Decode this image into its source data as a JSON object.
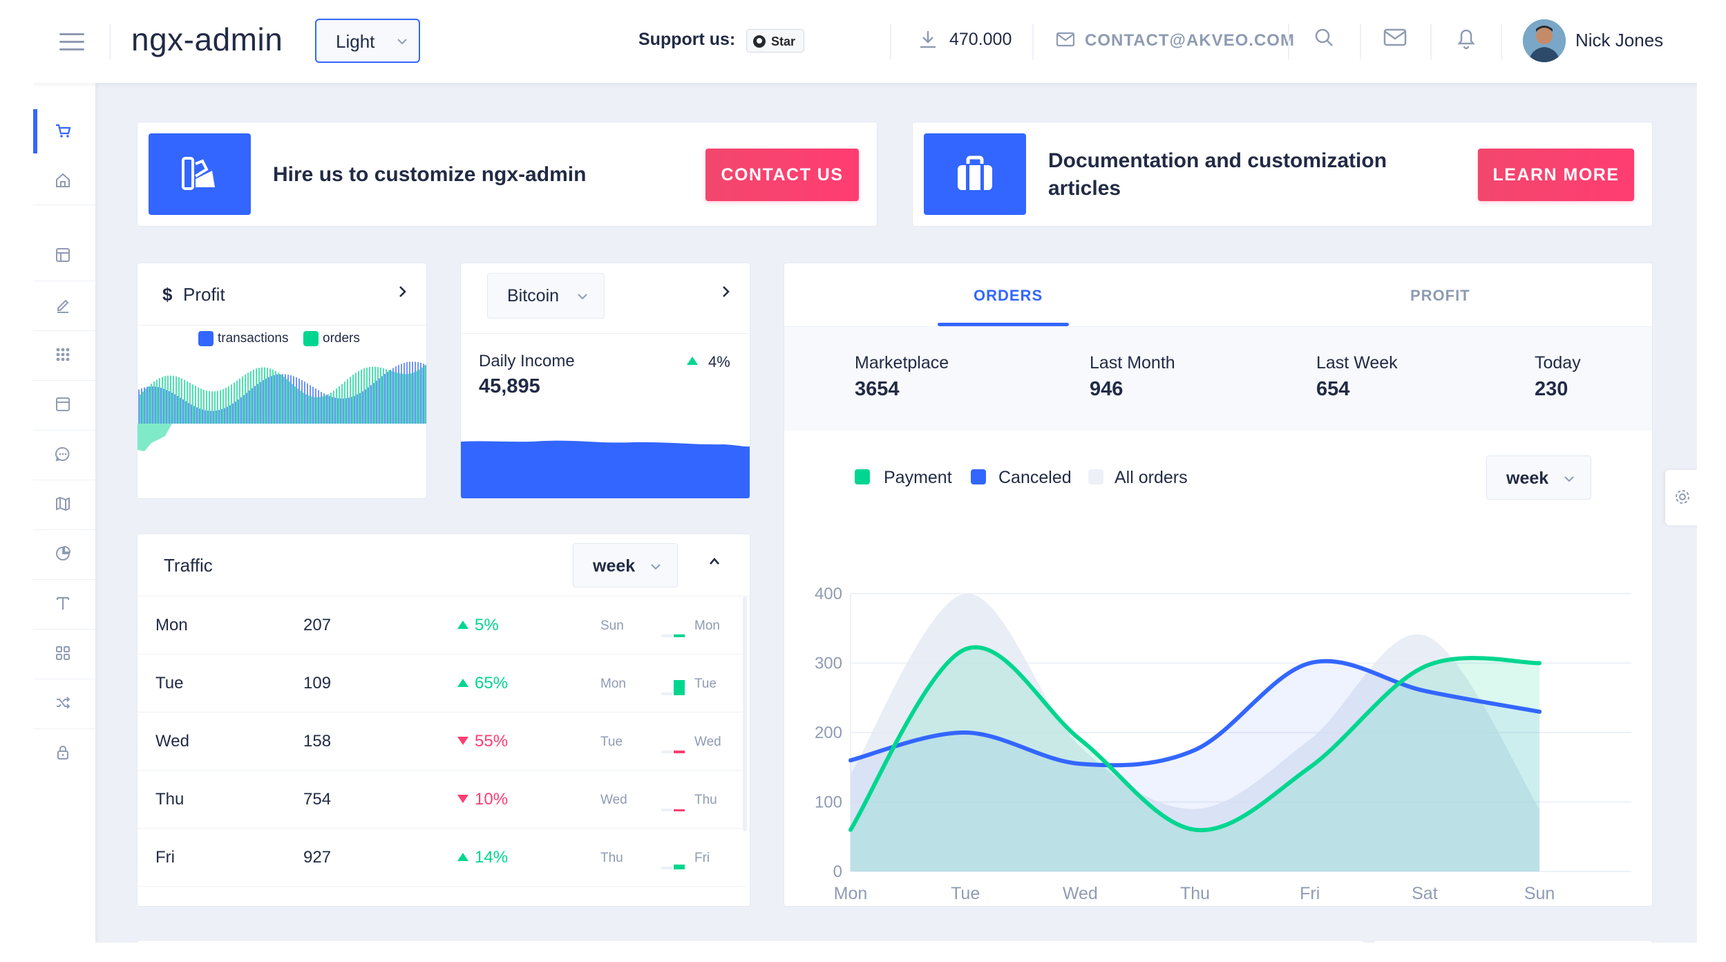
{
  "header": {
    "logo": "ngx-admin",
    "theme": "Light",
    "support_label": "Support us:",
    "star_label": "Star",
    "downloads": "470.000",
    "contact": "CONTACT@AKVEO.COM",
    "user_name": "Nick Jones"
  },
  "sidebar": {
    "items": [
      "shopping-cart-icon",
      "home-icon",
      "layout-icon",
      "edit-icon",
      "keypad-icon",
      "browser-icon",
      "message-circle-icon",
      "map-icon",
      "pie-chart-icon",
      "text-icon",
      "grid-icon",
      "shuffle-icon",
      "lock-icon"
    ]
  },
  "promo": {
    "hire_text": "Hire us to customize ngx-admin",
    "contact_button": "CONTACT US",
    "docs_text_line1": "Documentation and customization",
    "docs_text_line2": "articles",
    "learn_button": "LEARN MORE"
  },
  "profit_card": {
    "currency": "$",
    "title": "Profit",
    "legend": [
      "transactions",
      "orders"
    ]
  },
  "bitcoin_card": {
    "currency": "Bitcoin",
    "label": "Daily Income",
    "value": "45,895",
    "delta": "4%"
  },
  "traffic": {
    "title": "Traffic",
    "period": "week",
    "rows": [
      {
        "day": "Mon",
        "value": "207",
        "delta": "5%",
        "dir": "up",
        "prev": "Sun",
        "cur": "Mon"
      },
      {
        "day": "Tue",
        "value": "109",
        "delta": "65%",
        "dir": "up",
        "prev": "Mon",
        "cur": "Tue"
      },
      {
        "day": "Wed",
        "value": "158",
        "delta": "55%",
        "dir": "down",
        "prev": "Tue",
        "cur": "Wed"
      },
      {
        "day": "Thu",
        "value": "754",
        "delta": "10%",
        "dir": "down",
        "prev": "Wed",
        "cur": "Thu"
      },
      {
        "day": "Fri",
        "value": "927",
        "delta": "14%",
        "dir": "up",
        "prev": "Thu",
        "cur": "Fri"
      }
    ]
  },
  "orders_profit": {
    "tabs": [
      "ORDERS",
      "PROFIT"
    ],
    "active_tab": "ORDERS",
    "stats": [
      {
        "label": "Marketplace",
        "value": "3654"
      },
      {
        "label": "Last Month",
        "value": "946"
      },
      {
        "label": "Last Week",
        "value": "654"
      },
      {
        "label": "Today",
        "value": "230"
      }
    ],
    "legend": [
      "Payment",
      "Canceled",
      "All orders"
    ],
    "period": "week"
  },
  "colors": {
    "primary": "#3366ff",
    "success": "#00d68f",
    "danger": "#ff3d71",
    "muted": "#8f9bb3"
  },
  "chart_data": {
    "type": "area",
    "categories": [
      "Mon",
      "Tue",
      "Wed",
      "Thu",
      "Fri",
      "Sat",
      "Sun"
    ],
    "ylim": [
      0,
      400
    ],
    "yticks": [
      "0",
      "100",
      "200",
      "300",
      "400"
    ],
    "series": [
      {
        "name": "All orders",
        "values": [
          140,
          400,
          180,
          90,
          190,
          340,
          90
        ]
      },
      {
        "name": "Canceled",
        "values": [
          160,
          200,
          155,
          175,
          300,
          260,
          230
        ]
      },
      {
        "name": "Payment",
        "values": [
          60,
          320,
          190,
          60,
          150,
          295,
          300
        ]
      }
    ]
  }
}
